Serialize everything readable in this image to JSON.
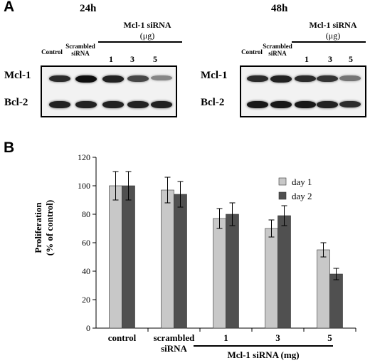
{
  "panel_a": {
    "letter": "A",
    "left": {
      "timepoint": "24h",
      "group_label_line1": "Mcl-1 siRNA",
      "group_label_line2": "(μg)",
      "lanes": [
        "Control",
        "Scrambled siRNA",
        "1",
        "3",
        "5"
      ],
      "lanes_short": {
        "control": "Control",
        "scrambled_1": "Scrambled",
        "scrambled_2": "siRNA"
      },
      "rows": [
        "Mcl-1",
        "Bcl-2"
      ],
      "mcl1_intensity": [
        0.85,
        1.0,
        0.9,
        0.7,
        0.35
      ],
      "bcl2_intensity": [
        0.9,
        0.9,
        0.9,
        0.9,
        0.9
      ]
    },
    "right": {
      "timepoint": "48h",
      "group_label_line1": "Mcl-1 siRNA",
      "group_label_line2": "(μg)",
      "lanes_short": {
        "control": "Control",
        "scrambled_1": "Scrambled",
        "scrambled_2": "siRNA"
      },
      "lane_numbers": [
        "1",
        "3",
        "5"
      ],
      "rows": [
        "Mcl-1",
        "Bcl-2"
      ],
      "mcl1_intensity": [
        0.85,
        0.9,
        0.85,
        0.8,
        0.45
      ],
      "bcl2_intensity": [
        0.95,
        0.95,
        0.95,
        0.9,
        0.85
      ]
    }
  },
  "panel_b": {
    "letter": "B",
    "group_bracket_label": "Mcl-1 siRNA (mg)"
  },
  "chart_data": {
    "type": "bar",
    "title": "",
    "ylabel_line1": "Proliferation",
    "ylabel_line2": "(% of control)",
    "ylim": [
      0,
      120
    ],
    "yticks": [
      "0",
      "20",
      "40",
      "60",
      "80",
      "100",
      "120"
    ],
    "categories": [
      "control",
      "scrambled siRNA",
      "1",
      "3",
      "5"
    ],
    "category_line1": [
      "control",
      "scrambled",
      "1",
      "3",
      "5"
    ],
    "category_line2": [
      "",
      "siRNA",
      "",
      "",
      ""
    ],
    "legend_position": "right",
    "series": [
      {
        "name": "day 1",
        "color": "#c8c8c8",
        "values": [
          100,
          97,
          77,
          70,
          55
        ],
        "errors": [
          10,
          9,
          7,
          6,
          5
        ]
      },
      {
        "name": "day 2",
        "color": "#505050",
        "values": [
          100,
          94,
          80,
          79,
          38
        ],
        "errors": [
          10,
          9,
          8,
          7,
          4
        ]
      }
    ]
  }
}
